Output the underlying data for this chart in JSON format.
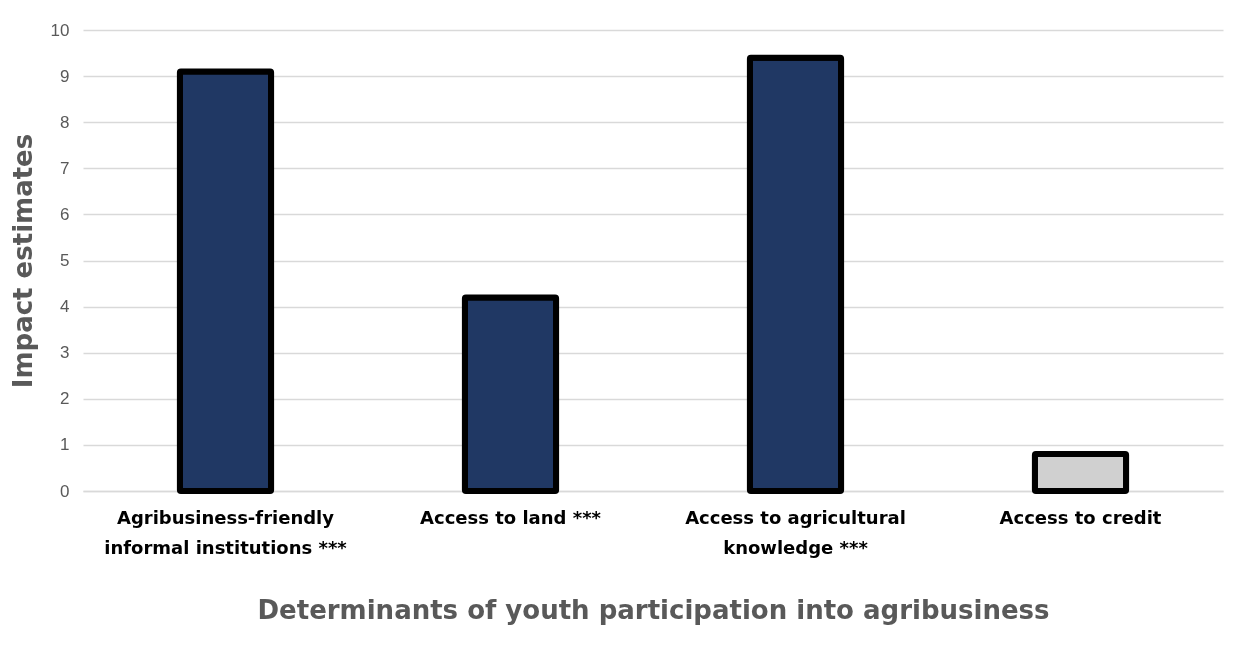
{
  "chart_data": {
    "type": "bar",
    "xlabel": "Determinants of youth participation into agribusiness",
    "ylabel": "Impact estimates",
    "categories": [
      "Agribusiness-friendly informal institutions ***",
      "Access to land ***",
      "Access to agricultural knowledge ***",
      "Access to credit"
    ],
    "values": [
      9.1,
      4.2,
      9.4,
      0.8
    ],
    "colors": [
      "#203864",
      "#203864",
      "#203864",
      "#d0d0d0"
    ],
    "ylim": [
      0,
      10
    ],
    "yticks": [
      0,
      1,
      2,
      3,
      4,
      5,
      6,
      7,
      8,
      9,
      10
    ],
    "grid": "y",
    "legend": false
  }
}
